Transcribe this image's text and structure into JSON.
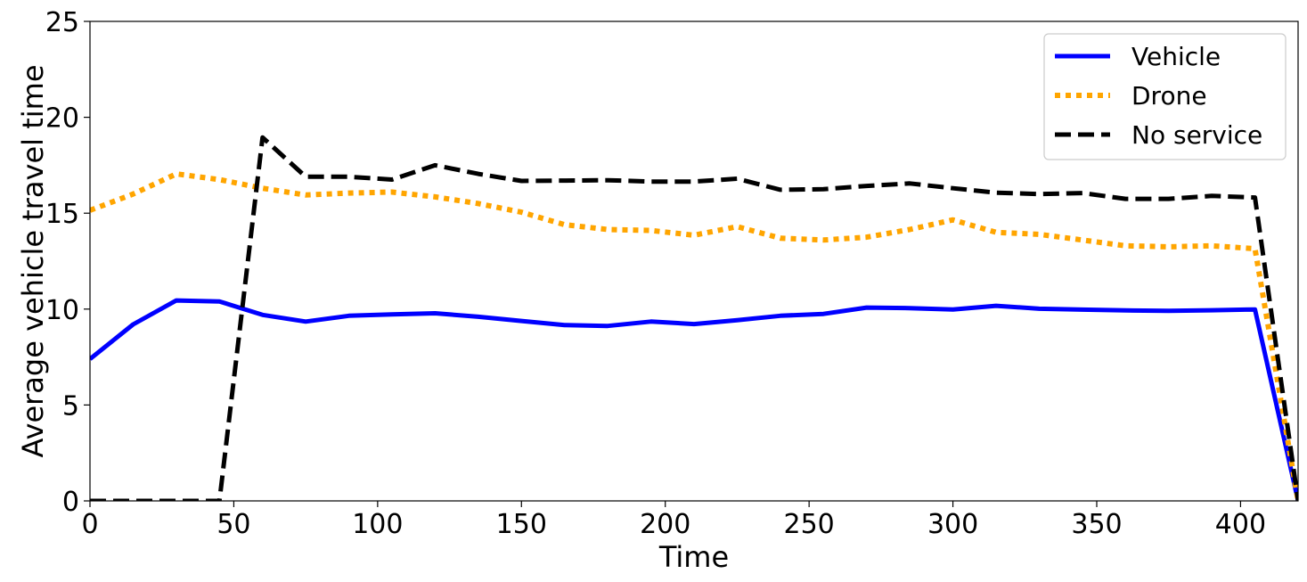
{
  "chart_data": {
    "type": "line",
    "title": "",
    "xlabel": "Time",
    "ylabel": "Average vehicle travel time",
    "xlim": [
      0,
      420
    ],
    "ylim": [
      0,
      25
    ],
    "xticks": [
      0,
      50,
      100,
      150,
      200,
      250,
      300,
      350,
      400
    ],
    "yticks": [
      0,
      5,
      10,
      15,
      20,
      25
    ],
    "grid": false,
    "legend_position": "top-right",
    "x": [
      0,
      15,
      30,
      45,
      60,
      75,
      90,
      105,
      120,
      135,
      150,
      165,
      180,
      195,
      210,
      225,
      240,
      255,
      270,
      285,
      300,
      315,
      330,
      345,
      360,
      375,
      390,
      405,
      420
    ],
    "series": [
      {
        "name": "Vehicle",
        "color": "#0000ff",
        "style": "solid",
        "values": [
          7.4,
          9.2,
          10.45,
          10.4,
          9.7,
          9.35,
          9.65,
          9.72,
          9.78,
          9.6,
          9.38,
          9.17,
          9.12,
          9.35,
          9.22,
          9.42,
          9.65,
          9.75,
          10.08,
          10.05,
          9.98,
          10.17,
          10.02,
          9.97,
          9.93,
          9.91,
          9.94,
          9.98,
          0.0
        ]
      },
      {
        "name": "Drone",
        "color": "#ffa500",
        "style": "dotted",
        "values": [
          15.15,
          16.0,
          17.05,
          16.75,
          16.3,
          15.95,
          16.05,
          16.1,
          15.85,
          15.5,
          15.05,
          14.4,
          14.15,
          14.1,
          13.85,
          14.3,
          13.7,
          13.6,
          13.75,
          14.15,
          14.65,
          14.0,
          13.9,
          13.6,
          13.3,
          13.25,
          13.3,
          13.15,
          0.0
        ]
      },
      {
        "name": "No service",
        "color": "#000000",
        "style": "dashed",
        "values": [
          0.0,
          0.0,
          0.0,
          0.0,
          18.95,
          16.9,
          16.9,
          16.75,
          17.5,
          17.05,
          16.68,
          16.7,
          16.72,
          16.65,
          16.65,
          16.8,
          16.22,
          16.25,
          16.42,
          16.55,
          16.3,
          16.07,
          16.0,
          16.05,
          15.75,
          15.75,
          15.9,
          15.82,
          0.0
        ]
      }
    ]
  }
}
